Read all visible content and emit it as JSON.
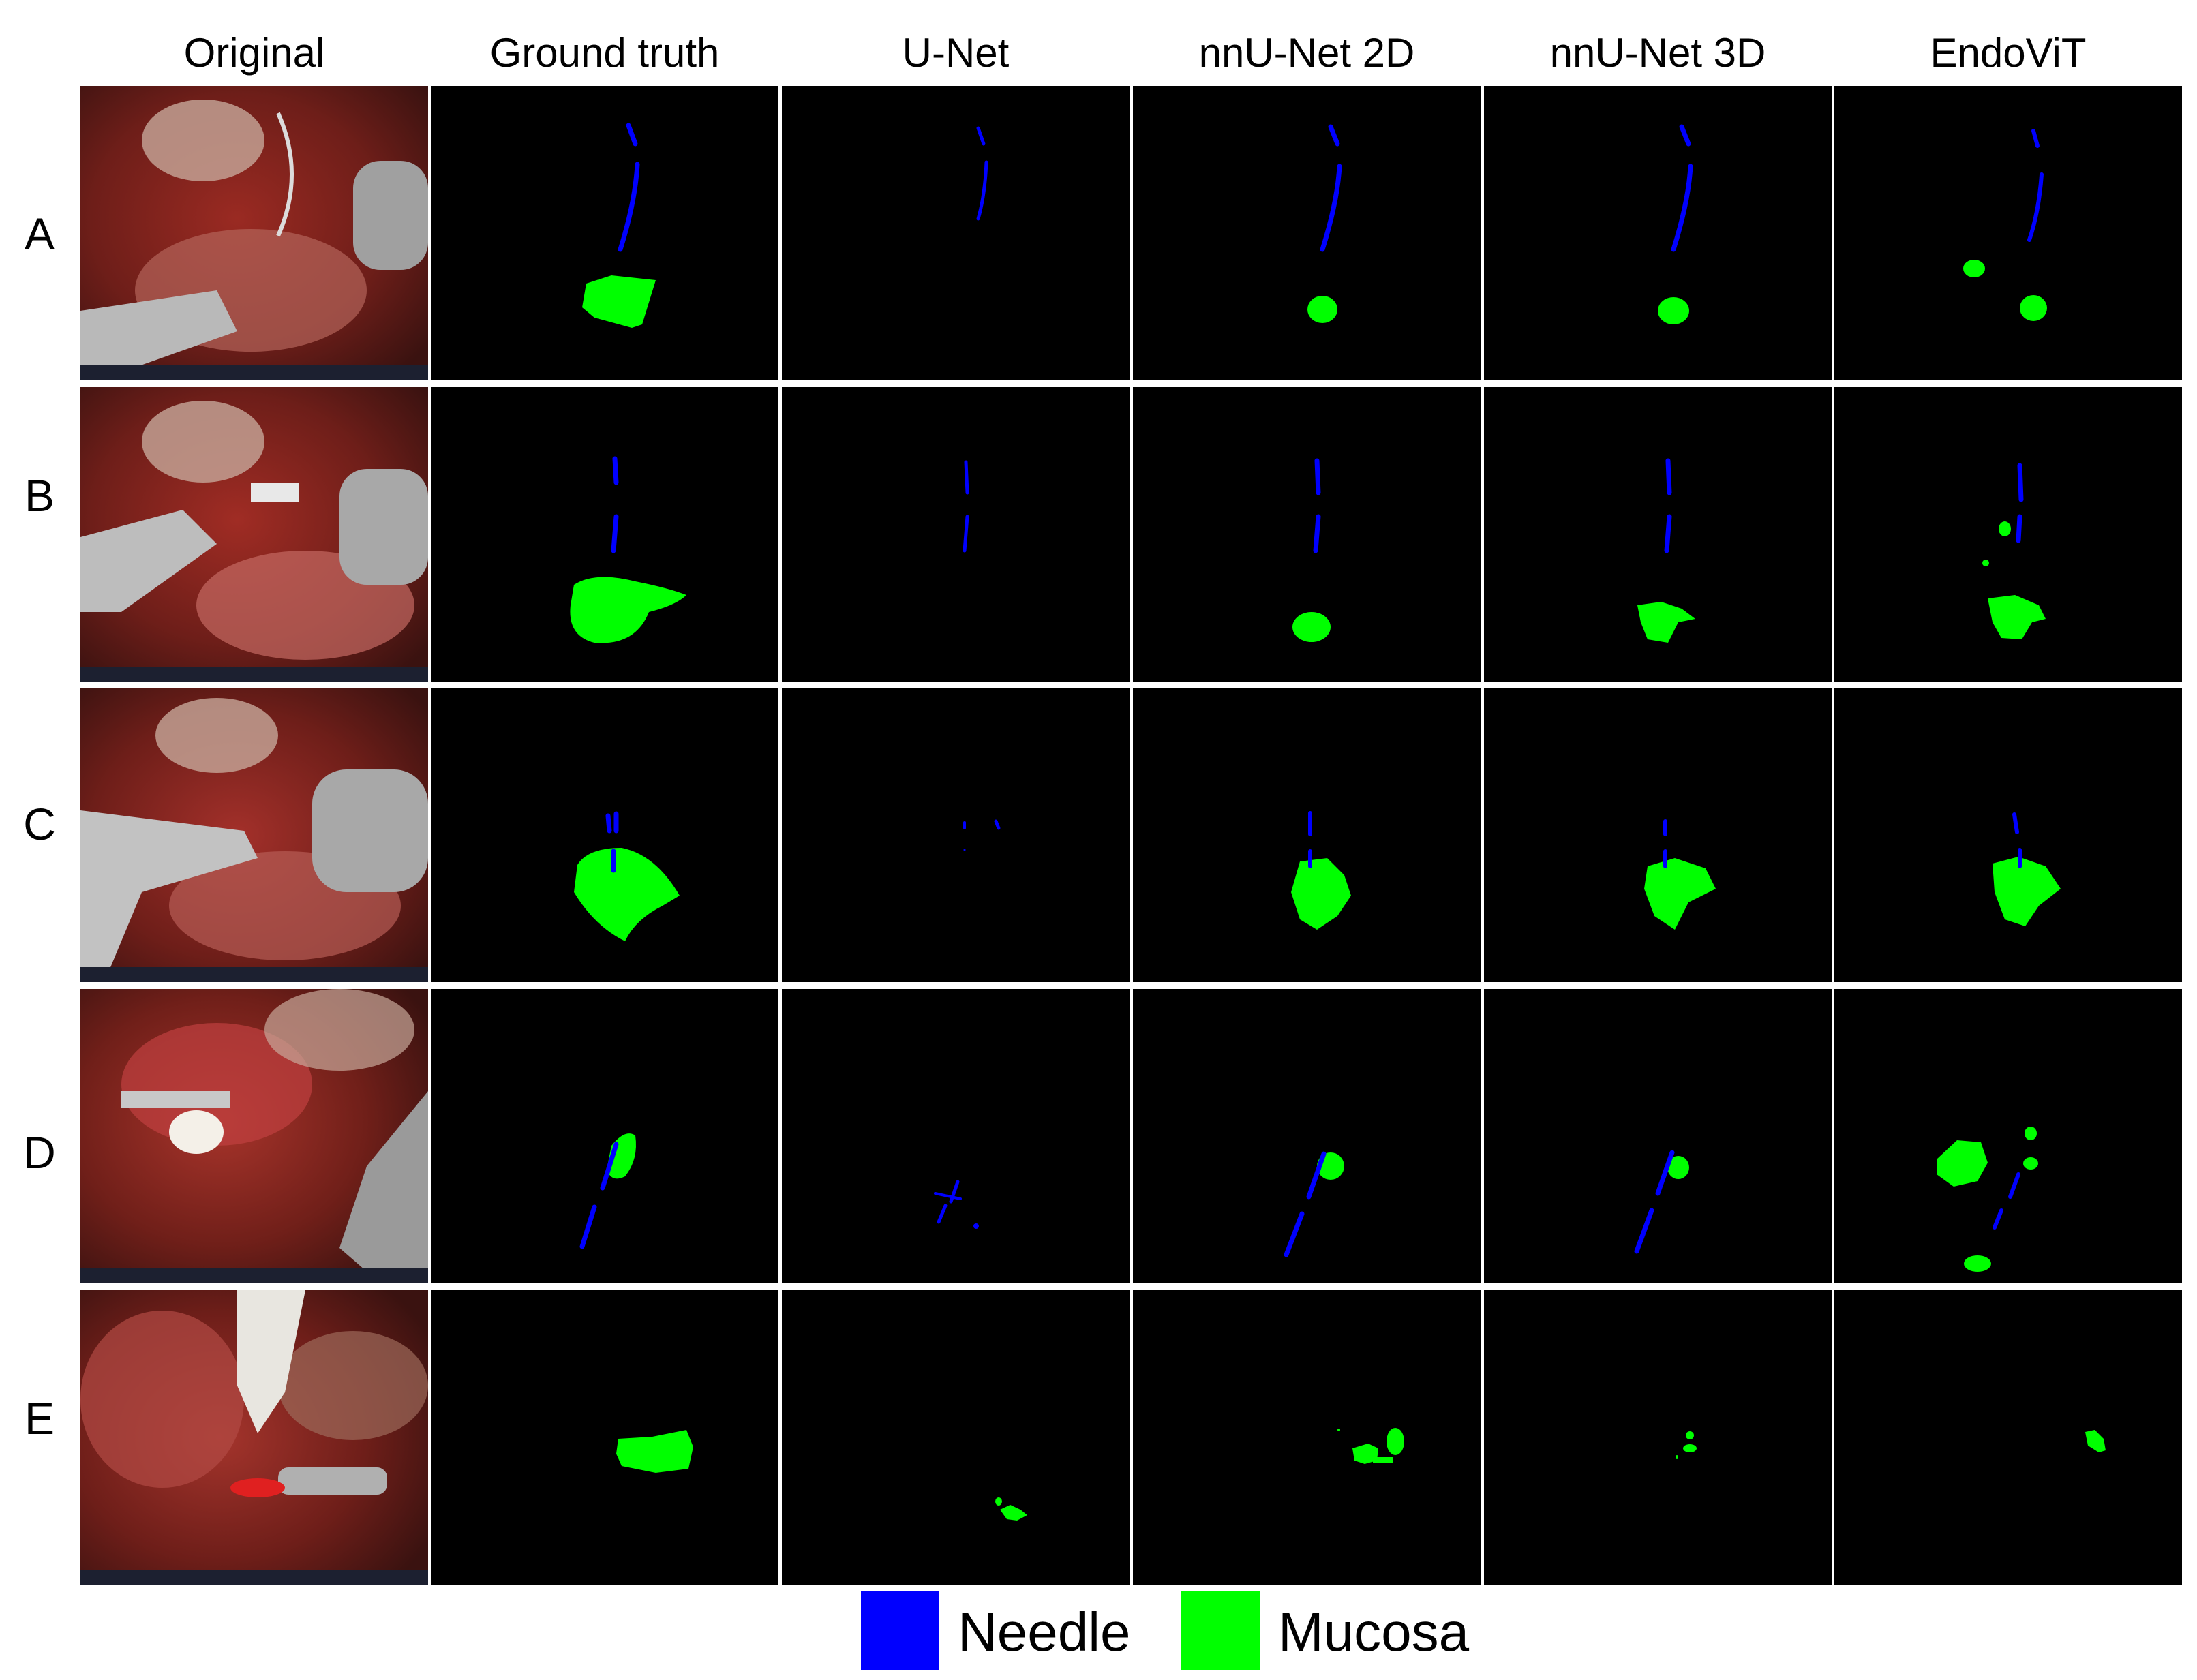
{
  "columns": [
    "Original",
    "Ground truth",
    "U-Net",
    "nnU-Net 2D",
    "nnU-Net 3D",
    "EndoViT"
  ],
  "rows": [
    "A",
    "B",
    "C",
    "D",
    "E"
  ],
  "legend": [
    {
      "label": "Needle",
      "color": "#0000ff"
    },
    {
      "label": "Mucosa",
      "color": "#00ff00"
    }
  ],
  "colors": {
    "needle": "#0000ff",
    "mucosa": "#00ff00",
    "mask_background": "#000000",
    "grid_line": "#ffffff"
  }
}
